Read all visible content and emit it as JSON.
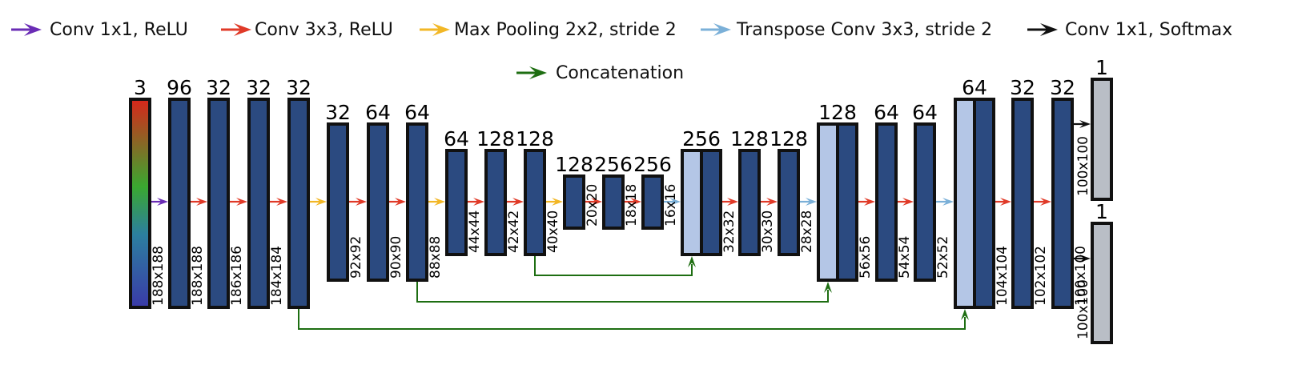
{
  "colors": {
    "conv1_relu": "#6a2cb5",
    "conv3_relu": "#e03a28",
    "maxpool": "#f2b726",
    "transpose": "#7bb0d8",
    "softmax": "#111111",
    "concat": "#1e6e12",
    "block_fill": "#2b4a80",
    "upsampled_fill": "#b4c6e6",
    "output_fill": "#b9bec6",
    "block_stroke": "#111111"
  },
  "legend": [
    {
      "key": "conv1_relu",
      "label": "Conv 1x1, ReLU",
      "icon": "purple-arrow-icon"
    },
    {
      "key": "conv3_relu",
      "label": "Conv 3x3, ReLU",
      "icon": "red-arrow-icon"
    },
    {
      "key": "maxpool",
      "label": "Max Pooling 2x2, stride 2",
      "icon": "yellow-arrow-icon"
    },
    {
      "key": "transpose",
      "label": "Transpose Conv 3x3, stride 2",
      "icon": "light-blue-arrow-icon"
    },
    {
      "key": "softmax",
      "label": "Conv 1x1, Softmax",
      "icon": "black-arrow-icon"
    },
    {
      "key": "concat",
      "label": "Concatenation",
      "icon": "green-arrow-icon"
    }
  ],
  "blocks": [
    {
      "id": "input",
      "kind": "input",
      "channels": "3",
      "size": "188x188"
    },
    {
      "id": "b1",
      "kind": "conv",
      "channels": "96",
      "size": "188x188"
    },
    {
      "id": "b2",
      "kind": "conv",
      "channels": "32",
      "size": "186x186"
    },
    {
      "id": "b3",
      "kind": "conv",
      "channels": "32",
      "size": "184x184"
    },
    {
      "id": "b4",
      "kind": "conv",
      "channels": "32",
      "size": ""
    },
    {
      "id": "b5",
      "kind": "conv",
      "channels": "32",
      "size": "92x92"
    },
    {
      "id": "b6",
      "kind": "conv",
      "channels": "64",
      "size": "90x90"
    },
    {
      "id": "b7",
      "kind": "conv",
      "channels": "64",
      "size": "88x88"
    },
    {
      "id": "b8",
      "kind": "conv",
      "channels": "64",
      "size": "44x44"
    },
    {
      "id": "b9",
      "kind": "conv",
      "channels": "128",
      "size": "42x42"
    },
    {
      "id": "b10",
      "kind": "conv",
      "channels": "128",
      "size": "40x40"
    },
    {
      "id": "b11",
      "kind": "conv",
      "channels": "128",
      "size": "20x20"
    },
    {
      "id": "b12",
      "kind": "conv",
      "channels": "256",
      "size": "18x18"
    },
    {
      "id": "b13",
      "kind": "conv",
      "channels": "256",
      "size": "16x16"
    },
    {
      "id": "b14",
      "kind": "concat",
      "channels": "256",
      "size": "32x32"
    },
    {
      "id": "b15",
      "kind": "conv",
      "channels": "128",
      "size": "30x30"
    },
    {
      "id": "b16",
      "kind": "conv",
      "channels": "128",
      "size": "28x28"
    },
    {
      "id": "b17",
      "kind": "concat",
      "channels": "128",
      "size": "56x56"
    },
    {
      "id": "b18",
      "kind": "conv",
      "channels": "64",
      "size": "54x54"
    },
    {
      "id": "b19",
      "kind": "conv",
      "channels": "64",
      "size": "52x52"
    },
    {
      "id": "b20",
      "kind": "concat",
      "channels": "64",
      "size": "104x104"
    },
    {
      "id": "b21",
      "kind": "conv",
      "channels": "32",
      "size": "102x102"
    },
    {
      "id": "b22",
      "kind": "conv",
      "channels": "32",
      "size": "100x100"
    },
    {
      "id": "out1",
      "kind": "output",
      "channels": "1",
      "size": "100x100"
    },
    {
      "id": "out2",
      "kind": "output",
      "channels": "1",
      "size": "100x100"
    }
  ],
  "arrows": [
    {
      "from": "input",
      "to": "b1",
      "op": "conv1_relu"
    },
    {
      "from": "b1",
      "to": "b2",
      "op": "conv3_relu"
    },
    {
      "from": "b2",
      "to": "b3",
      "op": "conv3_relu"
    },
    {
      "from": "b3",
      "to": "b4",
      "op": "conv3_relu"
    },
    {
      "from": "b4",
      "to": "b5",
      "op": "maxpool"
    },
    {
      "from": "b5",
      "to": "b6",
      "op": "conv3_relu"
    },
    {
      "from": "b6",
      "to": "b7",
      "op": "conv3_relu"
    },
    {
      "from": "b7",
      "to": "b8",
      "op": "maxpool"
    },
    {
      "from": "b8",
      "to": "b9",
      "op": "conv3_relu"
    },
    {
      "from": "b9",
      "to": "b10",
      "op": "conv3_relu"
    },
    {
      "from": "b10",
      "to": "b11",
      "op": "maxpool"
    },
    {
      "from": "b11",
      "to": "b12",
      "op": "conv3_relu"
    },
    {
      "from": "b12",
      "to": "b13",
      "op": "conv3_relu"
    },
    {
      "from": "b13",
      "to": "b14",
      "op": "transpose"
    },
    {
      "from": "b14",
      "to": "b15",
      "op": "conv3_relu"
    },
    {
      "from": "b15",
      "to": "b16",
      "op": "conv3_relu"
    },
    {
      "from": "b16",
      "to": "b17",
      "op": "transpose"
    },
    {
      "from": "b17",
      "to": "b18",
      "op": "conv3_relu"
    },
    {
      "from": "b18",
      "to": "b19",
      "op": "conv3_relu"
    },
    {
      "from": "b19",
      "to": "b20",
      "op": "transpose"
    },
    {
      "from": "b20",
      "to": "b21",
      "op": "conv3_relu"
    },
    {
      "from": "b21",
      "to": "b22",
      "op": "conv3_relu"
    },
    {
      "from": "b22",
      "to": "out1",
      "op": "softmax"
    },
    {
      "from": "b22",
      "to": "out2",
      "op": "softmax"
    }
  ],
  "skips": [
    {
      "from": "b10",
      "to": "b14"
    },
    {
      "from": "b7",
      "to": "b17"
    },
    {
      "from": "b4",
      "to": "b20"
    }
  ]
}
